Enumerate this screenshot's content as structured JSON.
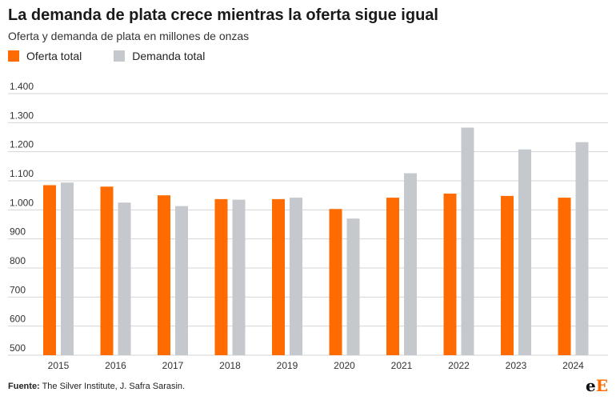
{
  "chart_data": {
    "type": "bar",
    "title": "La demanda de plata crece mientras la oferta sigue igual",
    "subtitle": "Oferta y demanda de plata en millones de onzas",
    "categories": [
      "2015",
      "2016",
      "2017",
      "2018",
      "2019",
      "2020",
      "2021",
      "2022",
      "2023",
      "2024"
    ],
    "series": [
      {
        "name": "Oferta total",
        "color": "#ff6b00",
        "values": [
          1085,
          1080,
          1050,
          1037,
          1037,
          1003,
          1042,
          1056,
          1048,
          1042
        ]
      },
      {
        "name": "Demanda total",
        "color": "#c5c9ce",
        "values": [
          1094,
          1025,
          1013,
          1035,
          1042,
          970,
          1126,
          1283,
          1208,
          1233
        ]
      }
    ],
    "ylim": [
      500,
      1400
    ],
    "yticks": [
      500,
      600,
      700,
      800,
      900,
      1000,
      1100,
      1200,
      1300,
      1400
    ],
    "ytick_labels": [
      "500",
      "600",
      "700",
      "800",
      "900",
      "1.000",
      "1.100",
      "1.200",
      "1.300",
      "1.400"
    ],
    "grid": true,
    "legend": "top-left",
    "xlabel": "",
    "ylabel": ""
  },
  "footer": {
    "source_label": "Fuente:",
    "source_text": " The Silver Institute, J. Safra Sarasin."
  },
  "logo": {
    "part1": "e",
    "part2": "E"
  }
}
